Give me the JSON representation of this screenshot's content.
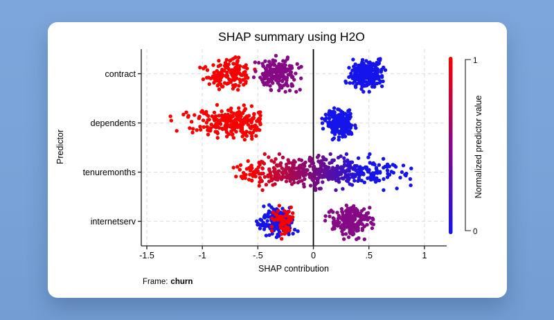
{
  "page": {
    "background_color": "#79a3d8",
    "card_color": "#ffffff"
  },
  "chart_data": {
    "type": "scatter",
    "variant": "shap-beeswarm-summary",
    "title": "SHAP summary using H2O",
    "xlabel": "SHAP contribution",
    "ylabel": "Predictor",
    "note_prefix": "Frame:",
    "note_value": "churn",
    "categories": [
      "contract",
      "dependents",
      "tenuremonths",
      "internetserv"
    ],
    "x_ticks": [
      -1.5,
      -1,
      -0.5,
      0,
      0.5,
      1
    ],
    "x_tick_labels": [
      "-1.5",
      "-1",
      "-.5",
      "0",
      ".5",
      "1"
    ],
    "xlim": [
      -1.55,
      1.2
    ],
    "zero_line": 0,
    "grid": "dashed-light",
    "colors": {
      "red": "#f80000",
      "blue": "#1414eb",
      "purple": "#860986",
      "axis": "#1a1a1a",
      "gridline": "#e0e0e0"
    },
    "colorbar": {
      "label": "Normalized predictor value",
      "max_label": "1",
      "min_label": "0",
      "color_high": "#f80000",
      "color_mid": "#860986",
      "color_low": "#1414eb"
    },
    "clusters": [
      {
        "category": "contract",
        "color": "red",
        "center": -0.76,
        "sd": 0.1,
        "min": -1.08,
        "max": -0.52,
        "n": 160
      },
      {
        "category": "contract",
        "color": "purple",
        "center": -0.32,
        "sd": 0.09,
        "min": -0.56,
        "max": -0.06,
        "n": 190
      },
      {
        "category": "contract",
        "color": "blue",
        "center": 0.47,
        "sd": 0.08,
        "min": 0.28,
        "max": 0.68,
        "n": 210
      },
      {
        "category": "dependents",
        "color": "red",
        "center": -0.7,
        "sd": 0.22,
        "min": -1.47,
        "max": -0.47,
        "n": 240
      },
      {
        "category": "dependents",
        "color": "blue",
        "center": 0.235,
        "sd": 0.06,
        "min": 0.07,
        "max": 0.39,
        "n": 230
      },
      {
        "category": "tenuremonths",
        "color": "gradient",
        "center": 0.06,
        "sd": 0.42,
        "min": -0.72,
        "max": 0.885,
        "n": 500
      },
      {
        "category": "internetserv",
        "color": "blue",
        "center": -0.33,
        "sd": 0.075,
        "min": -0.53,
        "max": -0.13,
        "n": 180
      },
      {
        "category": "internetserv",
        "color": "red",
        "center": -0.27,
        "sd": 0.05,
        "min": -0.41,
        "max": -0.16,
        "n": 65
      },
      {
        "category": "internetserv",
        "color": "purple",
        "center": 0.33,
        "sd": 0.09,
        "min": 0.07,
        "max": 0.59,
        "n": 210
      }
    ],
    "gradient_color_domain": [
      -0.55,
      0.45
    ]
  }
}
